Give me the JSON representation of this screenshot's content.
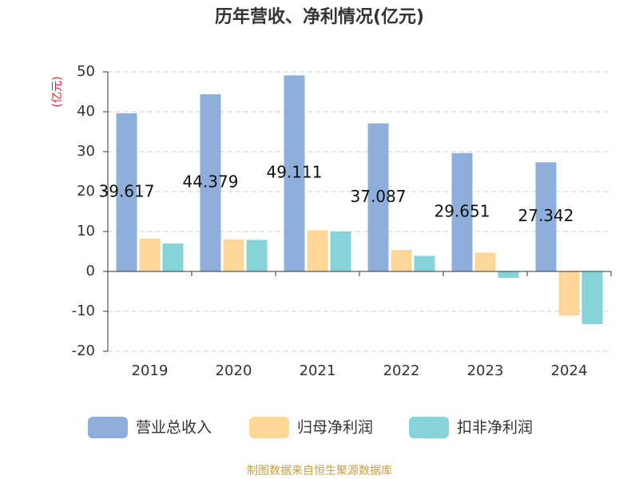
{
  "chart_data": {
    "type": "bar",
    "title": "历年营收、净利情况(亿元)",
    "y_label": "(亿元)",
    "categories": [
      "2019",
      "2020",
      "2021",
      "2022",
      "2023",
      "2024"
    ],
    "series": [
      {
        "name": "营业总收入",
        "color": "#8eaedb",
        "values": [
          39.617,
          44.379,
          49.111,
          37.087,
          29.651,
          27.342
        ],
        "show_labels": true
      },
      {
        "name": "归母净利润",
        "color": "#fdd798",
        "values": [
          8.2,
          8.0,
          10.3,
          5.4,
          4.7,
          -11.0
        ]
      },
      {
        "name": "扣非净利润",
        "color": "#86d4d8",
        "values": [
          7.0,
          7.9,
          10.0,
          3.9,
          -1.6,
          -13.2
        ]
      }
    ],
    "ylim": [
      -20,
      50
    ],
    "yticks": [
      -20,
      -10,
      0,
      10,
      20,
      30,
      40,
      50
    ],
    "grid": true,
    "source": "制图数据来自恒生聚源数据库"
  }
}
